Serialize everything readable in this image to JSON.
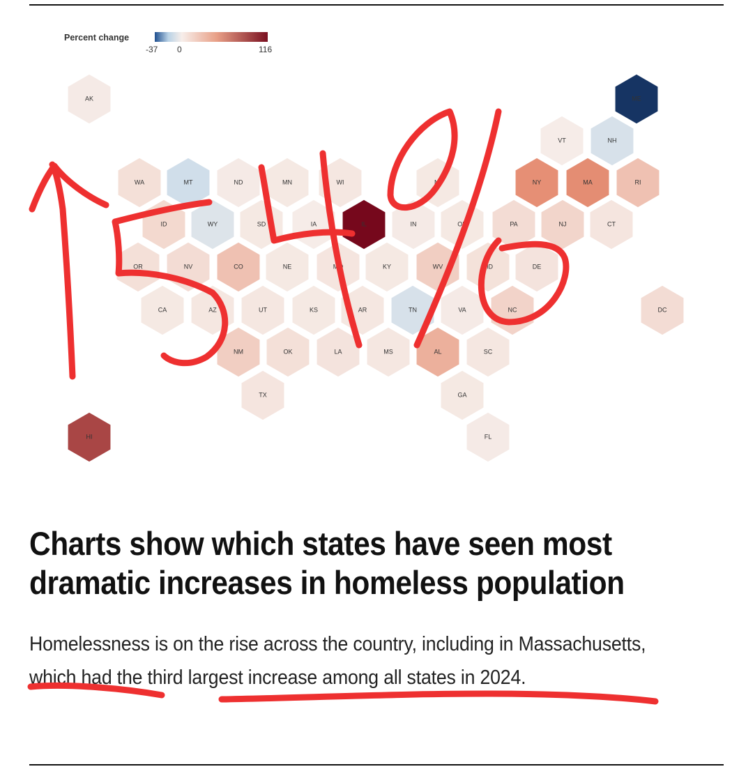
{
  "chart_data": {
    "type": "heatmap",
    "legend": {
      "title": "Percent change",
      "min": -37,
      "zero": 0,
      "max": 116,
      "ticks": [
        "-37",
        "0",
        "116"
      ]
    },
    "states": [
      {
        "code": "AK",
        "value": 2
      },
      {
        "code": "ME",
        "value": -37
      },
      {
        "code": "VT",
        "value": 1
      },
      {
        "code": "NH",
        "value": -10
      },
      {
        "code": "WA",
        "value": 8
      },
      {
        "code": "MT",
        "value": -12
      },
      {
        "code": "ND",
        "value": 2
      },
      {
        "code": "MN",
        "value": 3
      },
      {
        "code": "WI",
        "value": 4
      },
      {
        "code": "MI",
        "value": 3
      },
      {
        "code": "NY",
        "value": 53
      },
      {
        "code": "MA",
        "value": 54
      },
      {
        "code": "RI",
        "value": 25
      },
      {
        "code": "ID",
        "value": 12
      },
      {
        "code": "WY",
        "value": -8
      },
      {
        "code": "SD",
        "value": 3
      },
      {
        "code": "IA",
        "value": 1
      },
      {
        "code": "IL",
        "value": 116
      },
      {
        "code": "IN",
        "value": 2
      },
      {
        "code": "OH",
        "value": 3
      },
      {
        "code": "PA",
        "value": 10
      },
      {
        "code": "NJ",
        "value": 14
      },
      {
        "code": "CT",
        "value": 5
      },
      {
        "code": "OR",
        "value": 8
      },
      {
        "code": "NV",
        "value": 10
      },
      {
        "code": "CO",
        "value": 25
      },
      {
        "code": "NE",
        "value": 3
      },
      {
        "code": "MO",
        "value": 5
      },
      {
        "code": "KY",
        "value": 3
      },
      {
        "code": "WV",
        "value": 18
      },
      {
        "code": "MD",
        "value": 7
      },
      {
        "code": "DE",
        "value": 6
      },
      {
        "code": "CA",
        "value": 3
      },
      {
        "code": "AZ",
        "value": 4
      },
      {
        "code": "UT",
        "value": 4
      },
      {
        "code": "KS",
        "value": 3
      },
      {
        "code": "AR",
        "value": 4
      },
      {
        "code": "TN",
        "value": -10
      },
      {
        "code": "VA",
        "value": 2
      },
      {
        "code": "NC",
        "value": 15
      },
      {
        "code": "DC",
        "value": 10
      },
      {
        "code": "NM",
        "value": 18
      },
      {
        "code": "OK",
        "value": 8
      },
      {
        "code": "LA",
        "value": 6
      },
      {
        "code": "MS",
        "value": 4
      },
      {
        "code": "AL",
        "value": 35
      },
      {
        "code": "SC",
        "value": 4
      },
      {
        "code": "TX",
        "value": 5
      },
      {
        "code": "GA",
        "value": 3
      },
      {
        "code": "HI",
        "value": 87
      },
      {
        "code": "FL",
        "value": 2
      }
    ]
  },
  "article": {
    "headline": "Charts show which states have seen most dramatic increases in homeless population",
    "dek": "Homelessness is on the rise across the country, including in Massachusetts, which had the third largest increase among all states in 2024."
  },
  "annotation": {
    "text": "54%",
    "ink_color": "#ee3030"
  }
}
